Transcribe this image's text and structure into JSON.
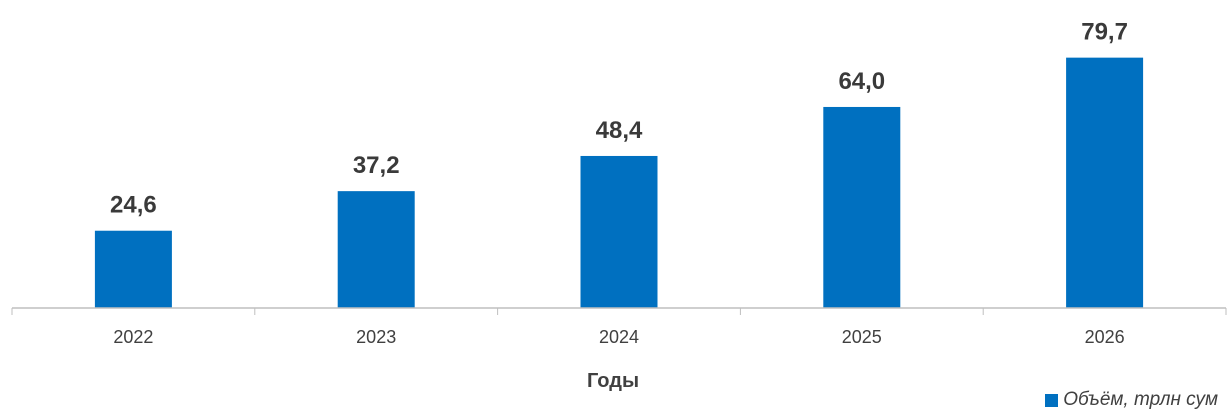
{
  "colors": {
    "bar": "#0070c0",
    "axis": "#bfbfbf"
  },
  "chart_data": {
    "type": "bar",
    "categories": [
      "2022",
      "2023",
      "2024",
      "2025",
      "2026"
    ],
    "series": [
      {
        "name": "Объём, трлн сум",
        "values": [
          24.6,
          37.2,
          48.4,
          64.0,
          79.7
        ]
      }
    ],
    "data_labels": [
      "24,6",
      "37,2",
      "48,4",
      "64,0",
      "79,7"
    ],
    "xlabel": "Годы",
    "ylabel": "",
    "ylim": [
      0,
      88.5
    ],
    "grid": false,
    "legend": "bottom-right"
  }
}
